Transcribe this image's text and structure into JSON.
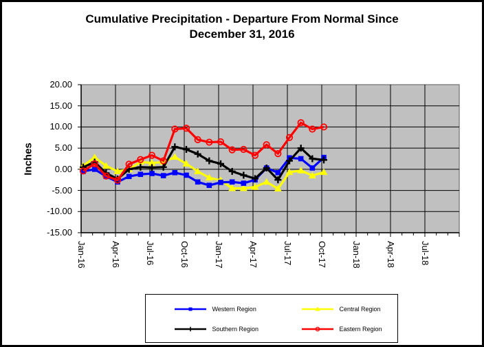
{
  "chart_data": {
    "type": "line",
    "title": "Cumulative Precipitation - Departure From Normal Since December 31, 2016",
    "title_lines": [
      "Cumulative Precipitation - Departure From Normal Since",
      "December 31, 2016"
    ],
    "ylabel": "Inches",
    "ylim": [
      -15,
      20
    ],
    "ytick_step": 5,
    "ytick_values": [
      20,
      15,
      10,
      5,
      0,
      -5,
      -10,
      -15
    ],
    "ytick_labels": [
      "20.00",
      "15.00",
      "10.00",
      "5.00",
      "0.00",
      "-5.00",
      "-10.00",
      "-15.00"
    ],
    "xtick_labels": [
      "Jan-16",
      "Apr-16",
      "Jul-16",
      "Oct-16",
      "Jan-17",
      "Apr-17",
      "Jul-17",
      "Oct-17",
      "Jan-18",
      "Apr-18",
      "Jul-18"
    ],
    "x_axis_months_span": 33,
    "grid": true,
    "plot_bg": "#c0c0c0",
    "legend_position": "bottom",
    "categories": [
      "Jan-16",
      "Feb-16",
      "Mar-16",
      "Apr-16",
      "May-16",
      "Jun-16",
      "Jul-16",
      "Aug-16",
      "Sep-16",
      "Oct-16",
      "Nov-16",
      "Dec-16",
      "Jan-17",
      "Feb-17",
      "Mar-17",
      "Apr-17",
      "May-17",
      "Jun-17",
      "Jul-17",
      "Aug-17",
      "Sep-17",
      "Oct-17"
    ],
    "series": [
      {
        "name": "Western Region",
        "color": "#0000ff",
        "marker": "square",
        "values": [
          -0.5,
          0.0,
          -1.7,
          -3.0,
          -1.7,
          -1.2,
          -1.0,
          -1.5,
          -0.8,
          -1.4,
          -3.0,
          -3.8,
          -3.1,
          -3.0,
          -3.3,
          -2.5,
          0.3,
          -0.8,
          2.7,
          2.5,
          0.3,
          2.8
        ]
      },
      {
        "name": "Central Region",
        "color": "#ffff00",
        "marker": "triangle",
        "values": [
          0.8,
          2.8,
          0.8,
          -0.5,
          0.0,
          1.7,
          1.5,
          1.7,
          2.9,
          1.3,
          -0.5,
          -2.0,
          -2.6,
          -4.5,
          -4.5,
          -4.2,
          -3.0,
          -4.6,
          -0.7,
          -0.3,
          -1.5,
          -0.7
        ]
      },
      {
        "name": "Southern Region",
        "color": "#000000",
        "marker": "plus",
        "values": [
          0.5,
          1.7,
          -0.9,
          -2.3,
          0.0,
          0.5,
          0.4,
          0.5,
          5.3,
          4.7,
          3.6,
          2.0,
          1.3,
          -0.5,
          -1.4,
          -2.2,
          0.3,
          -2.5,
          2.0,
          5.0,
          2.5,
          2.2
        ]
      },
      {
        "name": "Eastern Region",
        "color": "#ff0000",
        "marker": "circle-open",
        "values": [
          -0.4,
          1.3,
          -1.6,
          -2.6,
          1.2,
          2.3,
          3.3,
          2.0,
          9.5,
          9.7,
          7.0,
          6.4,
          6.5,
          4.6,
          4.7,
          3.3,
          5.8,
          3.7,
          7.5,
          11.0,
          9.5,
          10.0
        ]
      }
    ]
  }
}
